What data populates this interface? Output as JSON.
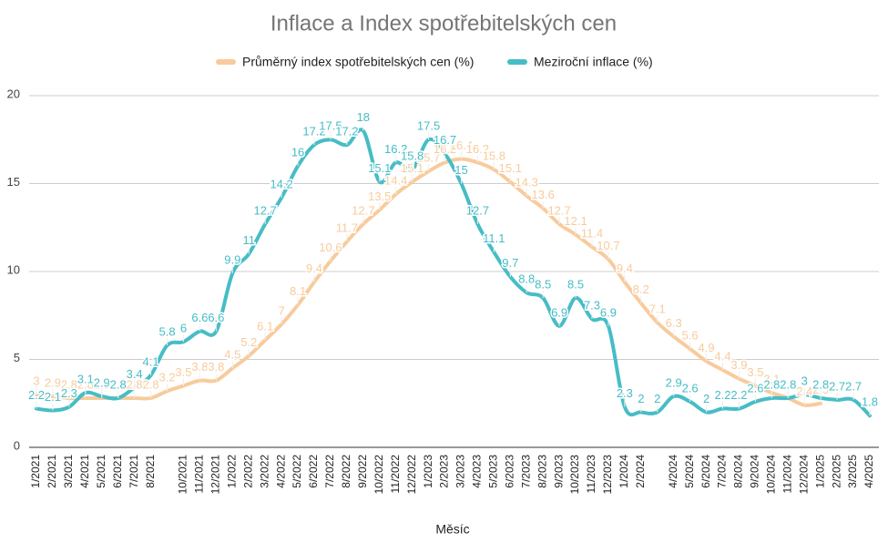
{
  "chart_data": {
    "type": "line",
    "title": "Inflace a Index spotřebitelských cen",
    "x_label": "Měsíc",
    "categories": [
      "1/2021",
      "2/2021",
      "3/2021",
      "4/2021",
      "5/2021",
      "6/2021",
      "7/2021",
      "8/2021",
      null,
      "10/2021",
      "11/2021",
      "12/2021",
      "1/2022",
      "2/2022",
      "3/2022",
      "4/2022",
      "5/2022",
      "6/2022",
      "7/2022",
      "8/2022",
      "9/2022",
      "10/2022",
      "11/2022",
      "12/2022",
      "1/2023",
      "2/2023",
      "3/2023",
      "4/2023",
      "5/2023",
      "6/2023",
      "7/2023",
      "8/2023",
      "9/2023",
      "10/2023",
      "11/2023",
      "12/2023",
      "1/2024",
      "2/2024",
      null,
      "4/2024",
      "5/2024",
      "6/2024",
      "7/2024",
      "8/2024",
      "9/2024",
      "10/2024",
      "11/2024",
      "12/2024",
      "1/2025",
      "2/2025",
      "3/2025",
      "4/2025"
    ],
    "series": [
      {
        "name": "Průměrný index spotřebitelských cen (%)",
        "color": "#f8cb9c",
        "values": [
          3,
          2.9,
          2.8,
          2.8,
          2.8,
          2.8,
          2.8,
          2.8,
          3.2,
          3.5,
          3.8,
          3.8,
          4.5,
          5.2,
          6.1,
          7,
          8.1,
          9.4,
          10.6,
          11.7,
          12.7,
          13.5,
          14.4,
          15.1,
          15.7,
          16.2,
          16.4,
          16.2,
          15.8,
          15.1,
          14.3,
          13.6,
          12.7,
          12.1,
          11.4,
          10.7,
          9.4,
          8.2,
          7.1,
          6.3,
          5.6,
          4.9,
          4.4,
          3.9,
          3.5,
          3.1,
          2.8,
          2.4,
          2.5,
          null,
          null,
          null
        ]
      },
      {
        "name": "Meziroční inflace (%)",
        "color": "#46bdc6",
        "values": [
          2.2,
          2.1,
          2.3,
          3.1,
          2.9,
          2.8,
          3.4,
          4.1,
          5.8,
          6,
          6.6,
          6.6,
          9.9,
          11,
          12.7,
          14.2,
          16,
          17.2,
          17.5,
          17.2,
          18,
          15.1,
          16.2,
          15.8,
          17.5,
          16.7,
          15,
          12.7,
          11.1,
          9.7,
          8.8,
          8.5,
          6.9,
          8.5,
          7.3,
          6.9,
          2.3,
          2,
          2,
          2.9,
          2.6,
          2,
          2.2,
          2.2,
          2.6,
          2.8,
          2.8,
          3,
          2.8,
          2.7,
          2.7,
          1.8
        ]
      }
    ],
    "ylim": [
      0,
      20
    ],
    "yticks": [
      0,
      5,
      10,
      15,
      20
    ],
    "grid": true,
    "legend": "top"
  }
}
